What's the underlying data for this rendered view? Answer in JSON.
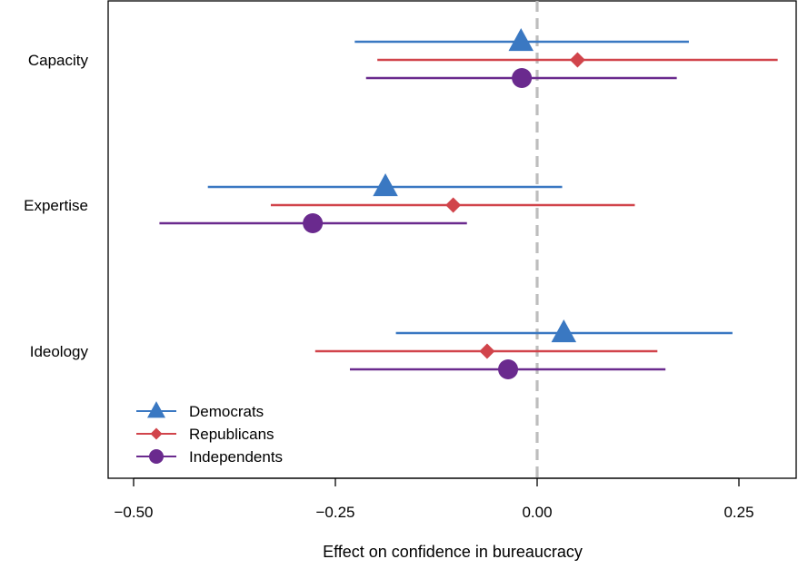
{
  "chart_data": {
    "type": "dot-and-whisker",
    "xlabel": "Effect on confidence in bureaucracy",
    "xlim": [
      -0.53,
      0.32
    ],
    "xticks": [
      {
        "value": -0.5,
        "label": "−0.50"
      },
      {
        "value": -0.25,
        "label": "−0.25"
      },
      {
        "value": 0.0,
        "label": "0.00"
      },
      {
        "value": 0.25,
        "label": "0.25"
      }
    ],
    "reference_line": {
      "x": 0,
      "style": "dashed",
      "color": "#bdbdbd"
    },
    "categories": [
      "Capacity",
      "Expertise",
      "Ideology"
    ],
    "legend_position": "bottom-left",
    "series": [
      {
        "name": "Democrats",
        "color": "#3a78c2",
        "marker": "triangle",
        "points": [
          {
            "category": "Capacity",
            "estimate": -0.02,
            "lower": -0.226,
            "upper": 0.188
          },
          {
            "category": "Expertise",
            "estimate": -0.188,
            "lower": -0.408,
            "upper": 0.031
          },
          {
            "category": "Ideology",
            "estimate": 0.033,
            "lower": -0.175,
            "upper": 0.242
          }
        ]
      },
      {
        "name": "Republicans",
        "color": "#d1444b",
        "marker": "diamond",
        "points": [
          {
            "category": "Capacity",
            "estimate": 0.05,
            "lower": -0.198,
            "upper": 0.298
          },
          {
            "category": "Expertise",
            "estimate": -0.104,
            "lower": -0.33,
            "upper": 0.121
          },
          {
            "category": "Ideology",
            "estimate": -0.062,
            "lower": -0.275,
            "upper": 0.149
          }
        ]
      },
      {
        "name": "Independents",
        "color": "#6a2a8e",
        "marker": "circle",
        "points": [
          {
            "category": "Capacity",
            "estimate": -0.019,
            "lower": -0.212,
            "upper": 0.173
          },
          {
            "category": "Expertise",
            "estimate": -0.278,
            "lower": -0.468,
            "upper": -0.087
          },
          {
            "category": "Ideology",
            "estimate": -0.036,
            "lower": -0.232,
            "upper": 0.159
          }
        ]
      }
    ]
  }
}
